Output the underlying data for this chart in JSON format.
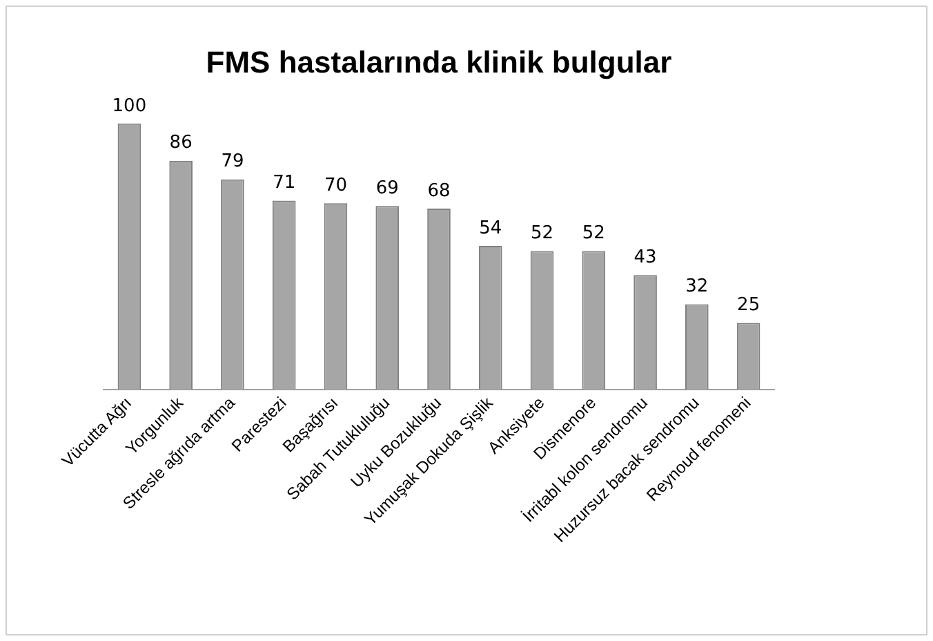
{
  "chart_data": {
    "type": "bar",
    "title": "FMS hastalarında klinik bulgular",
    "categories": [
      "Vücutta Ağrı",
      "Yorgunluk",
      "Stresle ağrıda artma",
      "Parestezi",
      "Başağrısı",
      "Sabah Tutukluluğu",
      "Uyku Bozukluğu",
      "Yumuşak Dokuda Şişlik",
      "Anksiyete",
      "Dismenore",
      "İrritabl kolon sendromu",
      "Huzursuz bacak sendromu",
      "Reynoud fenomeni"
    ],
    "values": [
      100,
      86,
      79,
      71,
      70,
      69,
      68,
      54,
      52,
      52,
      43,
      32,
      25
    ],
    "color": "#a6a6a6",
    "data_labels": true
  }
}
